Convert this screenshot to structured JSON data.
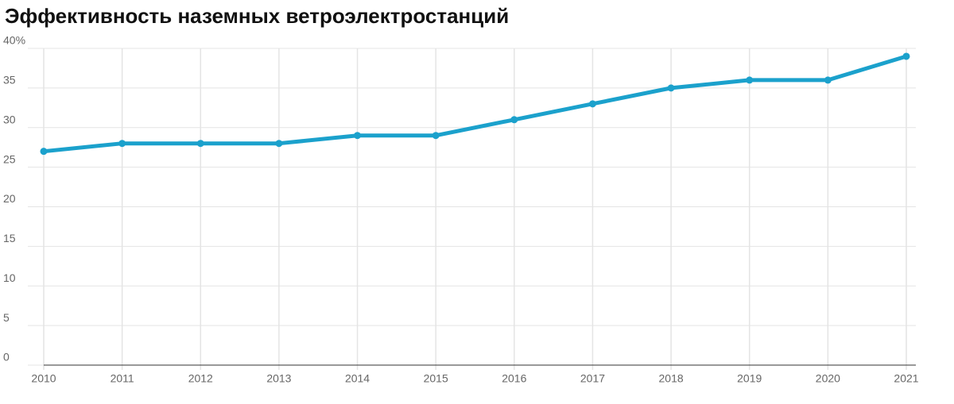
{
  "chart_data": {
    "type": "line",
    "title": "Эффективность наземных ветроэлектростанций",
    "x": [
      2010,
      2011,
      2012,
      2013,
      2014,
      2015,
      2016,
      2017,
      2018,
      2019,
      2020,
      2021
    ],
    "values": [
      27,
      28,
      28,
      28,
      29,
      29,
      31,
      33,
      35,
      36,
      36,
      39
    ],
    "color": "#1ba1cc",
    "xlim": [
      2010,
      2021
    ],
    "xticks": [
      2010,
      2011,
      2012,
      2013,
      2014,
      2015,
      2016,
      2017,
      2018,
      2019,
      2020,
      2021
    ],
    "ylim": [
      0,
      40
    ],
    "yticks": [
      0,
      5,
      10,
      15,
      20,
      25,
      30,
      35,
      {
        "value": 40,
        "label": "40%"
      }
    ],
    "grid": true
  }
}
